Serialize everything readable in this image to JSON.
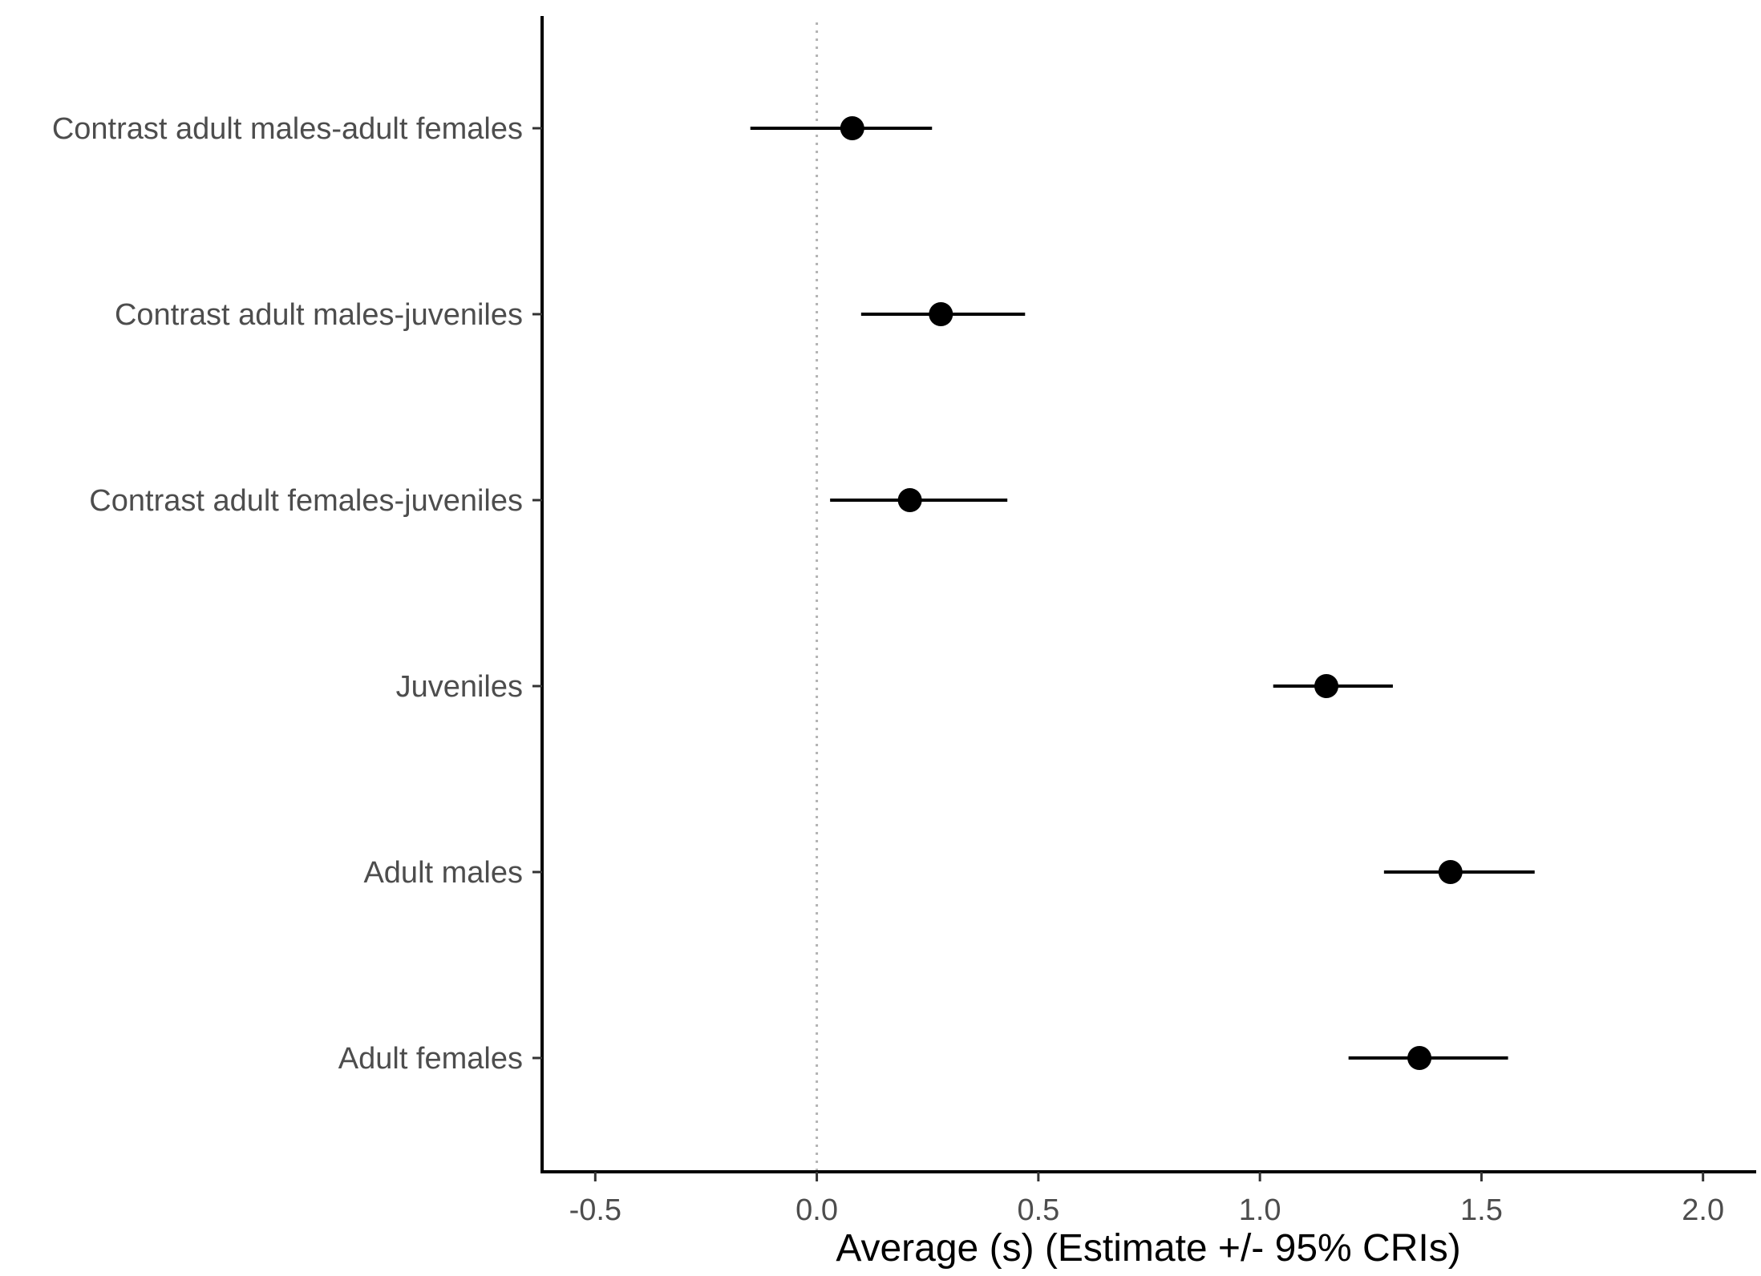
{
  "chart_data": {
    "type": "forest",
    "title": "",
    "xlabel": "Average (s) (Estimate +/- 95% CRIs)",
    "ylabel": "",
    "xlim": [
      -0.62,
      2.12
    ],
    "xticks": [
      -0.5,
      0.0,
      0.5,
      1.0,
      1.5,
      2.0
    ],
    "xtick_labels": [
      "-0.5",
      "0.0",
      "0.5",
      "1.0",
      "1.5",
      "2.0"
    ],
    "reference_line": 0.0,
    "grid": false,
    "legend": "none",
    "colors": {
      "points": "#000000",
      "reference": "#b3b3b3",
      "axis": "#000000"
    },
    "categories": [
      "Contrast adult males-adult females",
      "Contrast adult males-juveniles",
      "Contrast adult females-juveniles",
      "Juveniles",
      "Adult males",
      "Adult females"
    ],
    "series": [
      {
        "name": "Estimate",
        "estimates": [
          0.08,
          0.28,
          0.21,
          1.15,
          1.43,
          1.36
        ],
        "lower": [
          -0.15,
          0.1,
          0.03,
          1.03,
          1.28,
          1.2
        ],
        "upper": [
          0.26,
          0.47,
          0.43,
          1.3,
          1.62,
          1.56
        ]
      }
    ]
  }
}
